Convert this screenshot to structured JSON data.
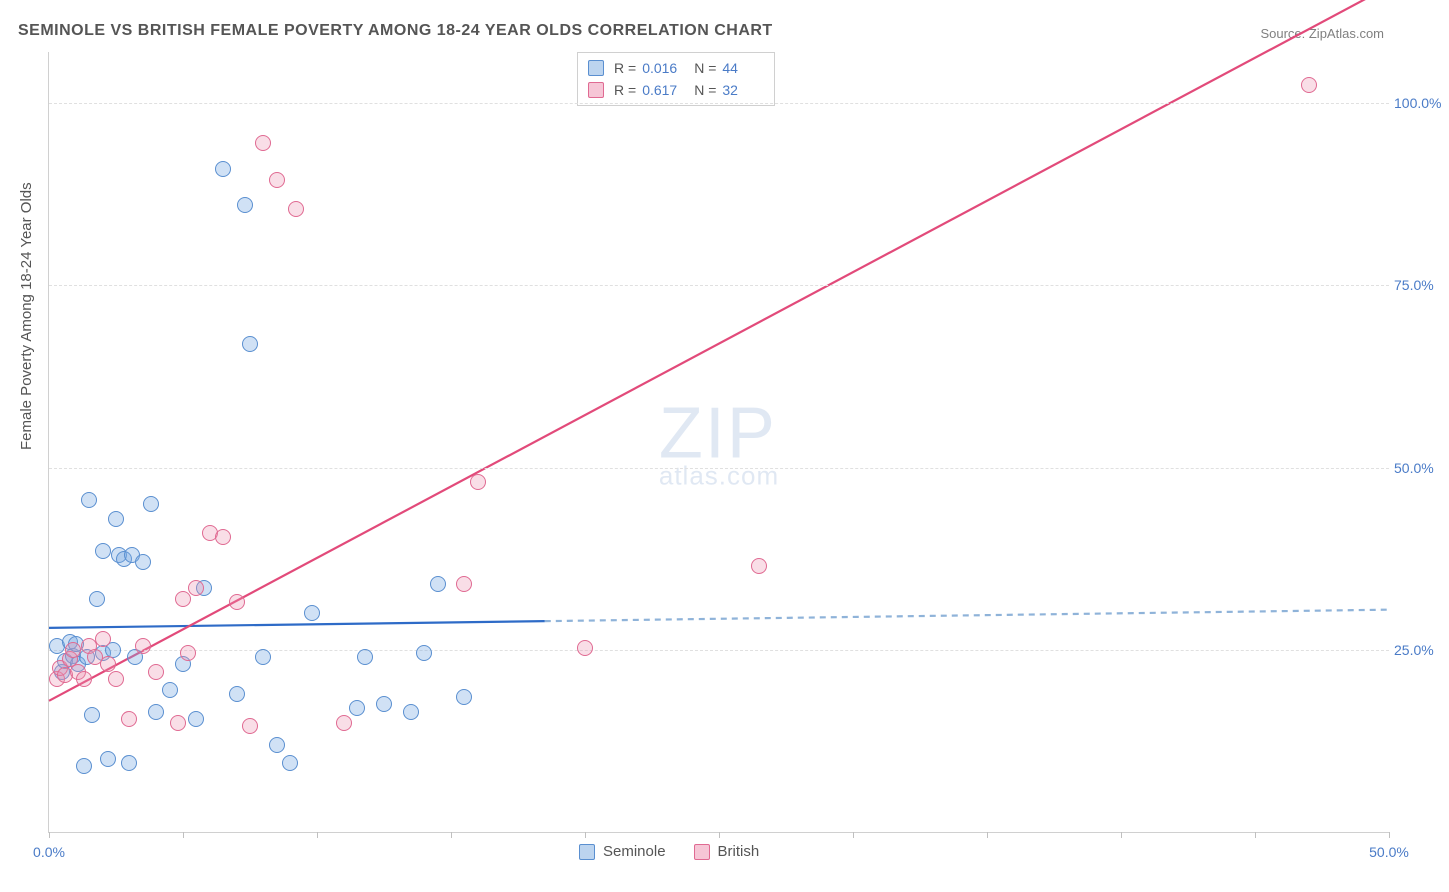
{
  "title": "SEMINOLE VS BRITISH FEMALE POVERTY AMONG 18-24 YEAR OLDS CORRELATION CHART",
  "source_label": "Source: ZipAtlas.com",
  "y_axis_label": "Female Poverty Among 18-24 Year Olds",
  "watermark_main": "ZIP",
  "watermark_sub": "atlas.com",
  "chart": {
    "type": "scatter",
    "background_color": "#ffffff",
    "grid_color": "#e0e0e0",
    "axis_color": "#d0d0d0",
    "xlim": [
      0,
      50
    ],
    "ylim": [
      0,
      107
    ],
    "x_tick_positions": [
      0,
      5,
      10,
      15,
      20,
      25,
      30,
      35,
      40,
      45,
      50
    ],
    "x_tick_labels": {
      "0": "0.0%",
      "50": "50.0%"
    },
    "y_tick_positions": [
      25,
      50,
      75,
      100
    ],
    "y_tick_labels": {
      "25": "25.0%",
      "50": "50.0%",
      "75": "75.0%",
      "100": "100.0%"
    },
    "tick_label_color": "#4a7bc7",
    "label_fontsize": 14,
    "title_fontsize": 16,
    "title_color": "#555555",
    "marker_radius": 8,
    "marker_stroke_width": 1.5
  },
  "series": [
    {
      "name": "Seminole",
      "fill_color": "rgba(120,170,225,0.35)",
      "stroke_color": "#5a8fd0",
      "swatch_fill": "#bcd4ef",
      "swatch_stroke": "#5a8fd0",
      "R_label": "R =",
      "R_value": "0.016",
      "N_label": "N =",
      "N_value": "44",
      "points": [
        [
          0.3,
          25.5
        ],
        [
          0.5,
          22.0
        ],
        [
          0.6,
          23.5
        ],
        [
          0.8,
          26.0
        ],
        [
          0.9,
          24.2
        ],
        [
          1.0,
          25.8
        ],
        [
          1.1,
          23.0
        ],
        [
          1.3,
          9.0
        ],
        [
          1.4,
          24.0
        ],
        [
          1.5,
          45.5
        ],
        [
          1.6,
          16.0
        ],
        [
          1.8,
          32.0
        ],
        [
          2.0,
          38.5
        ],
        [
          2.0,
          24.5
        ],
        [
          2.2,
          10.0
        ],
        [
          2.4,
          25.0
        ],
        [
          2.5,
          43.0
        ],
        [
          2.6,
          38.0
        ],
        [
          2.8,
          37.5
        ],
        [
          3.0,
          9.5
        ],
        [
          3.1,
          38.0
        ],
        [
          3.2,
          24.0
        ],
        [
          3.5,
          37.0
        ],
        [
          3.8,
          45.0
        ],
        [
          4.0,
          16.5
        ],
        [
          4.5,
          19.5
        ],
        [
          5.0,
          23.0
        ],
        [
          5.5,
          15.5
        ],
        [
          5.8,
          33.5
        ],
        [
          6.5,
          91.0
        ],
        [
          7.0,
          19.0
        ],
        [
          7.3,
          86.0
        ],
        [
          7.5,
          67.0
        ],
        [
          8.0,
          24.0
        ],
        [
          8.5,
          12.0
        ],
        [
          9.0,
          9.5
        ],
        [
          9.8,
          30.0
        ],
        [
          11.5,
          17.0
        ],
        [
          11.8,
          24.0
        ],
        [
          12.5,
          17.5
        ],
        [
          13.5,
          16.5
        ],
        [
          14.0,
          24.5
        ],
        [
          14.5,
          34.0
        ],
        [
          15.5,
          18.5
        ]
      ],
      "trend": {
        "x1": 0,
        "y1": 28.0,
        "x2": 50,
        "y2": 30.5,
        "solid_until_x": 18.5,
        "solid_color": "#2e6bc7",
        "dash_color": "#8fb3d9",
        "stroke_width": 2.2
      }
    },
    {
      "name": "British",
      "fill_color": "rgba(235,145,175,0.30)",
      "stroke_color": "#e06a92",
      "swatch_fill": "#f6c6d6",
      "swatch_stroke": "#e06a92",
      "R_label": "R =",
      "R_value": "0.617",
      "N_label": "N =",
      "N_value": "32",
      "points": [
        [
          0.3,
          21.0
        ],
        [
          0.4,
          22.5
        ],
        [
          0.6,
          21.5
        ],
        [
          0.8,
          23.8
        ],
        [
          0.9,
          25.0
        ],
        [
          1.1,
          22.0
        ],
        [
          1.3,
          21.0
        ],
        [
          1.5,
          25.5
        ],
        [
          1.7,
          24.0
        ],
        [
          2.0,
          26.5
        ],
        [
          2.2,
          23.0
        ],
        [
          2.5,
          21.0
        ],
        [
          3.0,
          15.5
        ],
        [
          3.5,
          25.5
        ],
        [
          4.0,
          22.0
        ],
        [
          4.8,
          15.0
        ],
        [
          5.0,
          32.0
        ],
        [
          5.2,
          24.5
        ],
        [
          5.5,
          33.5
        ],
        [
          6.0,
          41.0
        ],
        [
          6.5,
          40.5
        ],
        [
          7.0,
          31.5
        ],
        [
          7.5,
          14.5
        ],
        [
          8.0,
          94.5
        ],
        [
          8.5,
          89.5
        ],
        [
          9.2,
          85.5
        ],
        [
          11.0,
          15.0
        ],
        [
          15.5,
          34.0
        ],
        [
          16.0,
          48.0
        ],
        [
          20.0,
          25.2
        ],
        [
          26.5,
          36.5
        ],
        [
          47.0,
          102.5
        ]
      ],
      "trend": {
        "x1": 0,
        "y1": 18.0,
        "x2": 50,
        "y2": 116.0,
        "solid_until_x": 50,
        "solid_color": "#e24a7a",
        "dash_color": "#e24a7a",
        "stroke_width": 2.2
      }
    }
  ],
  "legend_series": [
    {
      "name": "Seminole"
    },
    {
      "name": "British"
    }
  ]
}
